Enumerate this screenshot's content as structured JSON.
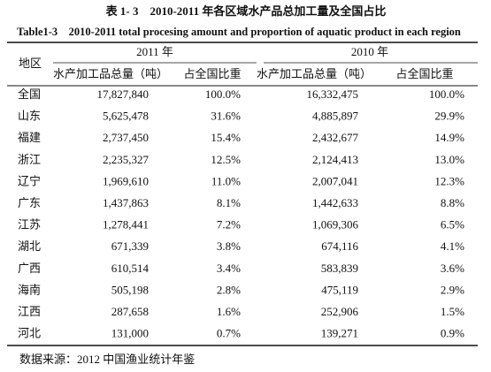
{
  "title": "表 1- 3　2010-2011 年各区域水产品总加工量及全国占比",
  "subtitle": "Table1-3　2010-2011 total procesing amount and proportion of aquatic product in each region",
  "table": {
    "header": {
      "region": "地区",
      "years": [
        "2011 年",
        "2010 年"
      ],
      "columns": [
        "水产加工品总量（吨）",
        "占全国比重",
        "水产加工品总量（吨）",
        "占全国比重"
      ]
    },
    "rows": [
      [
        "全国",
        "17,827,840",
        "100.0%",
        "16,332,475",
        "100.0%"
      ],
      [
        "山东",
        "5,625,478",
        "31.6%",
        "4,885,897",
        "29.9%"
      ],
      [
        "福建",
        "2,737,450",
        "15.4%",
        "2,432,677",
        "14.9%"
      ],
      [
        "浙江",
        "2,235,327",
        "12.5%",
        "2,124,413",
        "13.0%"
      ],
      [
        "辽宁",
        "1,969,610",
        "11.0%",
        "2,007,041",
        "12.3%"
      ],
      [
        "广东",
        "1,437,863",
        "8.1%",
        "1,442,633",
        "8.8%"
      ],
      [
        "江苏",
        "1,278,441",
        "7.2%",
        "1,069,306",
        "6.5%"
      ],
      [
        "湖北",
        "671,339",
        "3.8%",
        "674,116",
        "4.1%"
      ],
      [
        "广西",
        "610,514",
        "3.4%",
        "583,839",
        "3.6%"
      ],
      [
        "海南",
        "505,198",
        "2.8%",
        "475,119",
        "2.9%"
      ],
      [
        "江西",
        "287,658",
        "1.6%",
        "252,906",
        "1.5%"
      ],
      [
        "河北",
        "131,000",
        "0.7%",
        "139,271",
        "0.9%"
      ]
    ]
  },
  "source": "数据来源：2012 中国渔业统计年鉴"
}
